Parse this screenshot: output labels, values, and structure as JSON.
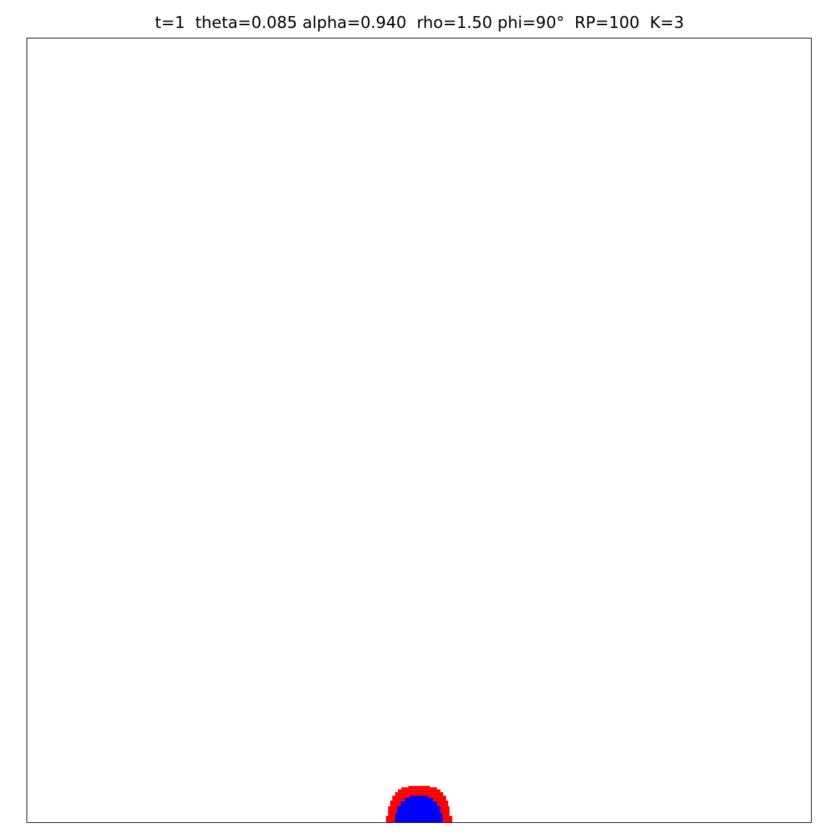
{
  "title": "t=1  theta=0.085 alpha=0.940  rho=1.50 phi=90°  RP=100  K=3",
  "colors": {
    "background": "#ffffff",
    "frame": "#000000",
    "shell": "#ff0000",
    "core": "#0000ff"
  },
  "regions": [
    {
      "name": "outer-shell",
      "color": "#ff0000"
    },
    {
      "name": "inner-core",
      "color": "#0000ff"
    }
  ]
}
